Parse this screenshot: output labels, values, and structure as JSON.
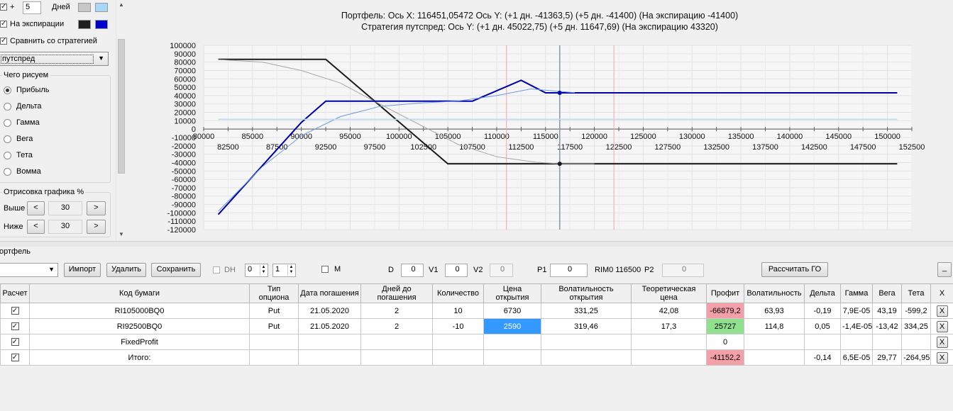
{
  "left_panel": {
    "days_plus": "+",
    "days_value": "5",
    "days_label": "Дней",
    "expiry_label": "На экспирации",
    "compare_label": "Сравнить со стратегией",
    "strategy_select": "путспред",
    "draw_group_title": "Чего рисуем",
    "draw_options": [
      {
        "label": "Прибыль",
        "selected": true
      },
      {
        "label": "Дельта",
        "selected": false
      },
      {
        "label": "Гамма",
        "selected": false
      },
      {
        "label": "Вега",
        "selected": false
      },
      {
        "label": "Тета",
        "selected": false
      },
      {
        "label": "Вомма",
        "selected": false
      }
    ],
    "render_group_title": "Отрисовка графика %",
    "above_label": "Выше",
    "above_value": "30",
    "below_label": "Ниже",
    "below_value": "30",
    "dec_symbol": "<",
    "inc_symbol": ">",
    "colors": {
      "days_a": "#c8c8c8",
      "days_b": "#a8d8f8",
      "expiry_a": "#202020",
      "expiry_b": "#0000c8"
    }
  },
  "chart": {
    "title_line1": "Портфель: Ось X: 116451,05472 Ось Y:  (+1 дн. -41363,5)  (+5 дн. -41400)  (На экспирацию -41400)",
    "title_line2": "Стратегия путспред:  Ось Y:  (+1 дн. 45022,75)  (+5 дн. 11647,69)  (На экспирацию 43320)"
  },
  "chart_data": {
    "type": "line",
    "xlim": [
      80000,
      152500
    ],
    "ylim": [
      -120000,
      100000
    ],
    "y_ticks": [
      100000,
      90000,
      80000,
      70000,
      60000,
      50000,
      40000,
      30000,
      20000,
      10000,
      0,
      -10000,
      -20000,
      -30000,
      -40000,
      -50000,
      -60000,
      -70000,
      -80000,
      -90000,
      -100000,
      -110000,
      -120000
    ],
    "x_ticks_row1": [
      80000,
      85000,
      90000,
      95000,
      100000,
      105000,
      110000,
      115000,
      120000,
      125000,
      130000,
      135000,
      140000,
      145000,
      150000
    ],
    "x_ticks_row2": [
      82500,
      87500,
      92500,
      97500,
      102500,
      107500,
      112500,
      117500,
      122500,
      127500,
      132500,
      137500,
      142500,
      147500,
      152500
    ],
    "cursor_x": 116451.05,
    "red_markers_x": [
      111000,
      122000
    ],
    "series": [
      {
        "color": "#1a1a1a",
        "width": 2,
        "x": [
          81500,
          92500,
          105000,
          151000
        ],
        "y": [
          83320,
          83320,
          -41400,
          -41400
        ]
      },
      {
        "color": "#a8a8a8",
        "width": 1,
        "x": [
          81500,
          86000,
          90000,
          94000,
          98000,
          100500,
          103000,
          106000,
          110000,
          114000,
          116451,
          120000
        ],
        "y": [
          83000,
          80000,
          70000,
          55000,
          30000,
          15000,
          0,
          -18000,
          -33000,
          -39500,
          -41364,
          -41400
        ]
      },
      {
        "color": "#0000a8",
        "width": 2,
        "x": [
          81500,
          90000,
          92500,
          107500,
          112500,
          115000,
          116451,
          151000
        ],
        "y": [
          -102000,
          8000,
          33320,
          33320,
          58320,
          43320,
          43320,
          43320
        ]
      },
      {
        "color": "#6a9ae8",
        "width": 1,
        "x": [
          81500,
          86000,
          90000,
          94000,
          98000,
          102000,
          106000,
          110000,
          113500,
          116451,
          118000
        ],
        "y": [
          -98000,
          -45000,
          -8000,
          15000,
          27000,
          31000,
          33500,
          40000,
          48000,
          45023,
          43500
        ]
      },
      {
        "color": "#b8d8f8",
        "width": 1.5,
        "x": [
          81500,
          151000
        ],
        "y": [
          11648,
          11648
        ]
      }
    ],
    "markers": [
      {
        "x": 116451,
        "y": 43320,
        "color": "#0000a8"
      },
      {
        "x": 116451,
        "y": -41400,
        "color": "#1a1a1a"
      }
    ]
  },
  "portfolio": {
    "title": "ортфель",
    "import_label": "Импорт",
    "delete_label": "Удалить",
    "save_label": "Сохранить",
    "dh_label": "DH",
    "dh_spin1": "0",
    "dh_spin2": "1",
    "m_label": "M",
    "d_label": "D",
    "d_value": "0",
    "v1_label": "V1",
    "v1_value": "0",
    "v2_label": "V2",
    "v2_value": "0",
    "p1_label": "P1",
    "p1_value": "0",
    "rim_label": "RIM0 116500",
    "p2_label": "P2",
    "p2_value": "0",
    "calc_go_label": "Рассчитать ГО",
    "minimize_label": "_",
    "columns": [
      "Расчет",
      "Код бумаги",
      "Тип опциона",
      "Дата погашения",
      "Дней до погашения",
      "Количество",
      "Цена открытия",
      "Волатильность открытия",
      "Теоретическая цена",
      "Профит",
      "Волатильность",
      "Дельта",
      "Гамма",
      "Вега",
      "Тета",
      "X"
    ],
    "rows": [
      {
        "calc": true,
        "code": "RI105000BQ0",
        "type": "Put",
        "date": "21.05.2020",
        "days": "2",
        "qty": "10",
        "open_price": "6730",
        "open_vol": "331,25",
        "theo": "42,08",
        "profit": "-66879,2",
        "vol": "63,93",
        "delta": "-0,19",
        "gamma": "7,9E-05",
        "vega": "43,19",
        "theta": "-599,2",
        "x": "X"
      },
      {
        "calc": true,
        "code": "RI92500BQ0",
        "type": "Put",
        "date": "21.05.2020",
        "days": "2",
        "qty": "-10",
        "open_price": "2590",
        "open_vol": "319,46",
        "theo": "17,3",
        "profit": "25727",
        "vol": "114,8",
        "delta": "0,05",
        "gamma": "-1,4E-05",
        "vega": "-13,42",
        "theta": "334,25",
        "x": "X"
      },
      {
        "calc": true,
        "code": "FixedProfit",
        "type": "",
        "date": "",
        "days": "",
        "qty": "",
        "open_price": "",
        "open_vol": "",
        "theo": "",
        "profit": "0",
        "vol": "",
        "delta": "",
        "gamma": "",
        "vega": "",
        "theta": "",
        "x": "X"
      },
      {
        "calc": true,
        "code": "Итого:",
        "type": "",
        "date": "",
        "days": "",
        "qty": "",
        "open_price": "",
        "open_vol": "",
        "theo": "",
        "profit": "-41152,2",
        "vol": "",
        "delta": "-0,14",
        "gamma": "6,5E-05",
        "vega": "29,77",
        "theta": "-264,95",
        "x": "X"
      }
    ],
    "colors": {
      "loss": "#f4a0a8",
      "gain": "#90e090",
      "selected_cell": "#3399ff"
    }
  }
}
